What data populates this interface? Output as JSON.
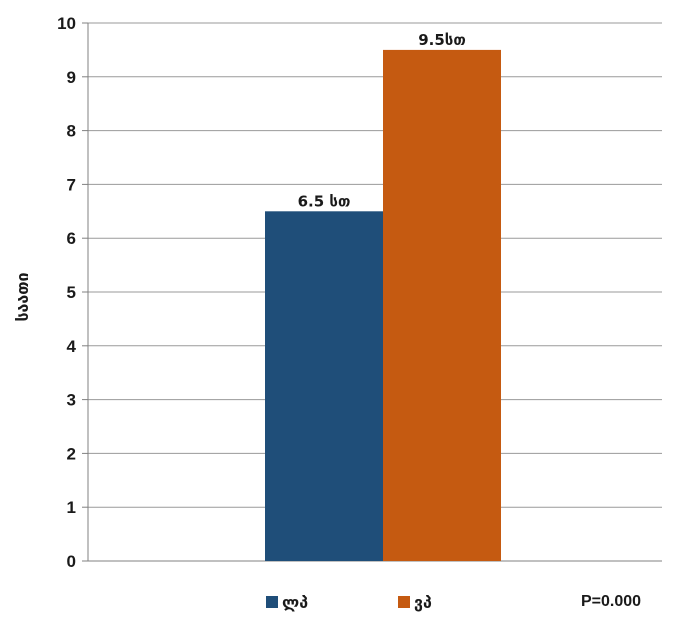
{
  "chart_data": {
    "type": "bar",
    "title": "",
    "xlabel": "",
    "ylabel": "საათი",
    "ylim": [
      0,
      10
    ],
    "yticks": [
      0,
      1,
      2,
      3,
      4,
      5,
      6,
      7,
      8,
      9,
      10
    ],
    "grid": true,
    "legend_position": "bottom",
    "series": [
      {
        "name": "ლპ",
        "value": 6.5,
        "data_label": "6.5 სთ",
        "color": "#1f4e79"
      },
      {
        "name": "ვპ",
        "value": 9.5,
        "data_label": "9.5სთ",
        "color": "#c55a11"
      }
    ],
    "annotation": "P=0.000"
  }
}
